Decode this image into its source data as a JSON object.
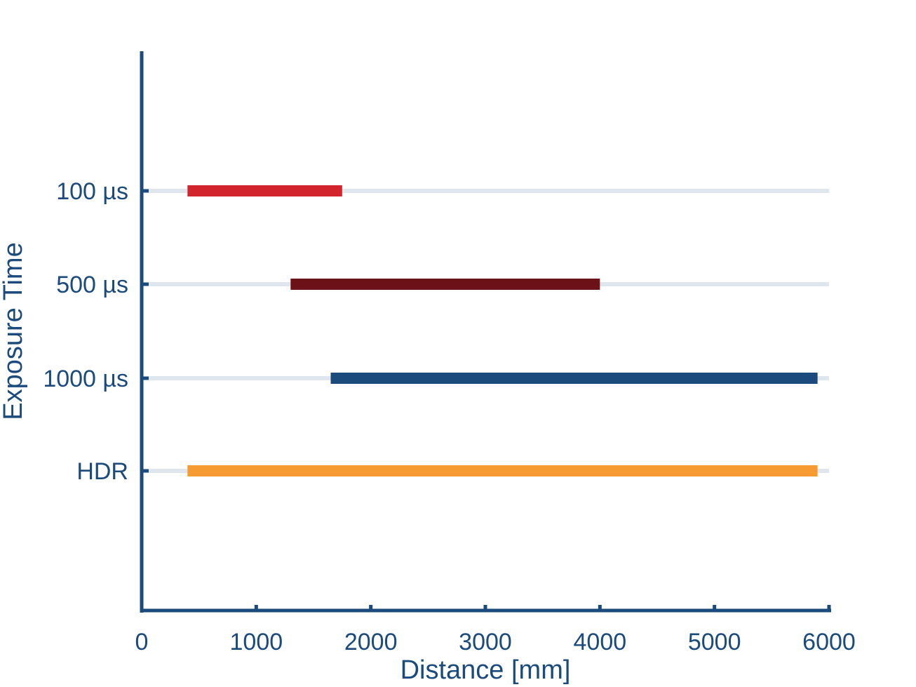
{
  "chart_data": {
    "type": "bar",
    "orientation": "horizontal-range",
    "xlabel": "Distance [mm]",
    "ylabel": "Exposure Time",
    "xlim": [
      0,
      6000
    ],
    "xticks": [
      "0",
      "1000",
      "2000",
      "3000",
      "4000",
      "5000",
      "6000"
    ],
    "categories": [
      "100 µs",
      "500 µs",
      "1000 µs",
      "HDR"
    ],
    "ranges": [
      {
        "category": "100 µs",
        "start": 400,
        "end": 1750,
        "color": "#d1242c"
      },
      {
        "category": "500 µs",
        "start": 1300,
        "end": 4000,
        "color": "#6b1117"
      },
      {
        "category": "1000 µs",
        "start": 1650,
        "end": 5900,
        "color": "#1b4a7c"
      },
      {
        "category": "HDR",
        "start": 400,
        "end": 5900,
        "color": "#f69b32"
      }
    ],
    "track_color": "#dfe6ee",
    "axis_color": "#1b4a7c",
    "grid": false,
    "legend": "none"
  }
}
